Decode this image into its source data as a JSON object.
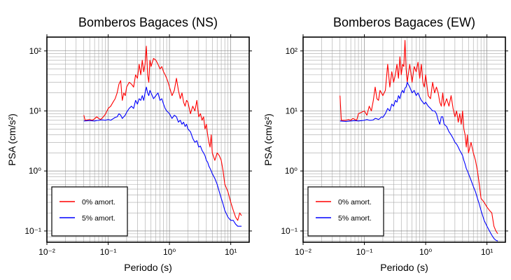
{
  "chart_data": [
    {
      "type": "line",
      "title": "Bomberos Bagaces (NS)",
      "xlabel": "Periodo (s)",
      "ylabel": "PSA (cm/s²)",
      "xscale": "log",
      "yscale": "log",
      "xlim": [
        0.01,
        20
      ],
      "ylim": [
        0.065,
        170
      ],
      "grid": true,
      "legend_position": "bottom-left",
      "xticks": [
        {
          "value": 0.01,
          "label": "10⁻²"
        },
        {
          "value": 0.1,
          "label": "10⁻¹"
        },
        {
          "value": 1,
          "label": "10⁰"
        },
        {
          "value": 10,
          "label": "10¹"
        }
      ],
      "yticks": [
        {
          "value": 0.1,
          "label": "10⁻¹"
        },
        {
          "value": 1,
          "label": "10⁰"
        },
        {
          "value": 10,
          "label": "10¹"
        },
        {
          "value": 100,
          "label": "10²"
        }
      ],
      "series": [
        {
          "name": "0% amort.",
          "color": "#ff0000",
          "x": [
            0.04,
            0.042,
            0.05,
            0.055,
            0.06,
            0.065,
            0.07,
            0.075,
            0.08,
            0.09,
            0.1,
            0.11,
            0.12,
            0.13,
            0.14,
            0.15,
            0.16,
            0.17,
            0.18,
            0.19,
            0.2,
            0.22,
            0.24,
            0.26,
            0.28,
            0.3,
            0.32,
            0.34,
            0.36,
            0.38,
            0.4,
            0.42,
            0.44,
            0.46,
            0.48,
            0.5,
            0.55,
            0.6,
            0.65,
            0.7,
            0.75,
            0.8,
            0.85,
            0.9,
            0.95,
            1.0,
            1.1,
            1.2,
            1.3,
            1.4,
            1.5,
            1.6,
            1.7,
            1.8,
            1.9,
            2.0,
            2.2,
            2.4,
            2.6,
            2.8,
            3.0,
            3.2,
            3.4,
            3.6,
            3.8,
            4.0,
            4.2,
            4.4,
            4.6,
            4.8,
            5.0,
            5.5,
            6.0,
            6.5,
            7.0,
            7.5,
            8.0,
            9.0,
            10.0,
            11.0,
            12.0,
            13.0,
            14.0,
            15.0
          ],
          "y": [
            8.5,
            7.0,
            7.2,
            7.0,
            7.4,
            8.0,
            7.5,
            7.2,
            7.6,
            8.8,
            11.0,
            12.0,
            14.0,
            16.0,
            20.0,
            28.0,
            32.0,
            15.0,
            20.0,
            18.0,
            25.0,
            30.0,
            28.0,
            25.0,
            40.0,
            35.0,
            60.0,
            40.0,
            70.0,
            45.0,
            60.0,
            120.0,
            40.0,
            30.0,
            70.0,
            55.0,
            75.0,
            70.0,
            60.0,
            50.0,
            55.0,
            45.0,
            40.0,
            35.0,
            30.0,
            25.0,
            18.0,
            22.0,
            35.0,
            22.0,
            16.0,
            20.0,
            14.0,
            12.0,
            15.0,
            14.0,
            9.0,
            12.0,
            10.0,
            15.0,
            8.0,
            9.0,
            7.0,
            8.0,
            5.0,
            6.0,
            4.0,
            3.0,
            2.5,
            4.0,
            2.0,
            1.5,
            2.0,
            1.8,
            1.5,
            1.0,
            0.6,
            0.45,
            0.3,
            0.22,
            0.17,
            0.15,
            0.2,
            0.18
          ]
        },
        {
          "name": "5% amort.",
          "color": "#0000ff",
          "x": [
            0.04,
            0.05,
            0.06,
            0.07,
            0.08,
            0.09,
            0.1,
            0.11,
            0.12,
            0.13,
            0.14,
            0.15,
            0.16,
            0.17,
            0.18,
            0.19,
            0.2,
            0.22,
            0.24,
            0.26,
            0.28,
            0.3,
            0.32,
            0.34,
            0.36,
            0.38,
            0.4,
            0.42,
            0.44,
            0.46,
            0.48,
            0.5,
            0.55,
            0.6,
            0.65,
            0.7,
            0.75,
            0.8,
            0.85,
            0.9,
            0.95,
            1.0,
            1.1,
            1.2,
            1.3,
            1.4,
            1.5,
            1.6,
            1.7,
            1.8,
            1.9,
            2.0,
            2.2,
            2.4,
            2.6,
            2.8,
            3.0,
            3.2,
            3.4,
            3.6,
            3.8,
            4.0,
            4.2,
            4.4,
            4.6,
            4.8,
            5.0,
            5.5,
            6.0,
            6.5,
            7.0,
            7.5,
            8.0,
            9.0,
            10.0,
            11.0,
            12.0,
            13.0,
            14.0,
            15.0
          ],
          "y": [
            6.8,
            6.9,
            6.8,
            7.0,
            7.1,
            7.0,
            7.2,
            7.0,
            7.4,
            7.8,
            8.0,
            9.0,
            8.5,
            7.5,
            8.0,
            8.5,
            9.5,
            11.0,
            12.0,
            11.0,
            15.0,
            13.0,
            16.0,
            15.0,
            18.0,
            15.0,
            20.0,
            25.0,
            20.0,
            18.0,
            22.0,
            20.0,
            16.0,
            18.0,
            20.0,
            15.0,
            16.0,
            13.0,
            11.0,
            10.0,
            9.5,
            9.0,
            7.5,
            8.5,
            8.0,
            6.5,
            7.0,
            6.0,
            6.5,
            5.5,
            6.0,
            5.0,
            4.5,
            3.5,
            3.0,
            3.2,
            2.5,
            2.6,
            2.2,
            2.0,
            1.8,
            1.5,
            1.4,
            1.2,
            1.1,
            1.0,
            0.9,
            0.75,
            0.6,
            0.45,
            0.35,
            0.28,
            0.22,
            0.17,
            0.15,
            0.15,
            0.13,
            0.12,
            0.12,
            0.12
          ]
        }
      ]
    },
    {
      "type": "line",
      "title": "Bomberos Bagaces (EW)",
      "xlabel": "Periodo (s)",
      "ylabel": "PSA (cm/s²)",
      "xscale": "log",
      "yscale": "log",
      "xlim": [
        0.01,
        20
      ],
      "ylim": [
        0.065,
        170
      ],
      "grid": true,
      "legend_position": "bottom-left",
      "xticks": [
        {
          "value": 0.01,
          "label": "10⁻²"
        },
        {
          "value": 0.1,
          "label": "10⁻¹"
        },
        {
          "value": 1,
          "label": "10⁰"
        },
        {
          "value": 10,
          "label": "10¹"
        }
      ],
      "yticks": [
        {
          "value": 0.1,
          "label": "10⁻¹"
        },
        {
          "value": 1,
          "label": "10⁰"
        },
        {
          "value": 10,
          "label": "10¹"
        },
        {
          "value": 100,
          "label": "10²"
        }
      ],
      "series": [
        {
          "name": "0% amort.",
          "color": "#ff0000",
          "x": [
            0.04,
            0.042,
            0.05,
            0.055,
            0.06,
            0.065,
            0.07,
            0.075,
            0.08,
            0.09,
            0.1,
            0.11,
            0.12,
            0.13,
            0.14,
            0.15,
            0.16,
            0.17,
            0.18,
            0.19,
            0.2,
            0.22,
            0.24,
            0.26,
            0.28,
            0.3,
            0.32,
            0.34,
            0.36,
            0.38,
            0.4,
            0.42,
            0.44,
            0.46,
            0.48,
            0.5,
            0.55,
            0.6,
            0.65,
            0.7,
            0.75,
            0.8,
            0.85,
            0.9,
            0.95,
            1.0,
            1.1,
            1.2,
            1.3,
            1.4,
            1.5,
            1.6,
            1.7,
            1.8,
            1.9,
            2.0,
            2.2,
            2.4,
            2.6,
            2.8,
            3.0,
            3.2,
            3.4,
            3.6,
            3.8,
            4.0,
            4.2,
            4.4,
            4.6,
            4.8,
            5.0,
            5.5,
            6.0,
            6.5,
            7.0,
            7.5,
            8.0,
            9.0,
            10.0,
            11.0,
            12.0,
            13.0,
            14.0,
            15.0
          ],
          "y": [
            18.0,
            7.0,
            7.0,
            7.2,
            7.0,
            7.5,
            7.2,
            7.0,
            9.0,
            9.5,
            10.0,
            8.5,
            12.0,
            10.0,
            15.0,
            25.0,
            16.0,
            15.0,
            22.0,
            20.0,
            18.0,
            22.0,
            60.0,
            25.0,
            45.0,
            30.0,
            40.0,
            60.0,
            35.0,
            80.0,
            40.0,
            60.0,
            55.0,
            150.0,
            50.0,
            30.0,
            60.0,
            30.0,
            55.0,
            45.0,
            65.0,
            35.0,
            60.0,
            30.0,
            25.0,
            40.0,
            18.0,
            16.0,
            30.0,
            20.0,
            25.0,
            20.0,
            14.0,
            12.0,
            20.0,
            12.0,
            16.0,
            12.0,
            18.0,
            11.0,
            8.0,
            10.0,
            6.5,
            9.0,
            6.0,
            10.0,
            5.0,
            4.0,
            2.5,
            4.0,
            2.0,
            3.0,
            2.0,
            1.5,
            1.0,
            0.6,
            0.35,
            0.3,
            0.25,
            0.22,
            0.2,
            0.12,
            0.1,
            0.09
          ]
        },
        {
          "name": "5% amort.",
          "color": "#0000ff",
          "x": [
            0.04,
            0.05,
            0.06,
            0.07,
            0.08,
            0.09,
            0.1,
            0.11,
            0.12,
            0.13,
            0.14,
            0.15,
            0.16,
            0.17,
            0.18,
            0.19,
            0.2,
            0.22,
            0.24,
            0.26,
            0.28,
            0.3,
            0.32,
            0.34,
            0.36,
            0.38,
            0.4,
            0.42,
            0.44,
            0.46,
            0.48,
            0.5,
            0.55,
            0.6,
            0.65,
            0.7,
            0.75,
            0.8,
            0.85,
            0.9,
            0.95,
            1.0,
            1.1,
            1.2,
            1.3,
            1.4,
            1.5,
            1.6,
            1.7,
            1.8,
            1.9,
            2.0,
            2.2,
            2.4,
            2.6,
            2.8,
            3.0,
            3.2,
            3.4,
            3.6,
            3.8,
            4.0,
            4.2,
            4.4,
            4.6,
            4.8,
            5.0,
            5.5,
            6.0,
            6.5,
            7.0,
            7.5,
            8.0,
            9.0,
            10.0,
            11.0,
            12.0,
            13.0,
            14.0,
            15.0
          ],
          "y": [
            6.8,
            6.7,
            6.8,
            6.9,
            6.8,
            6.9,
            7.0,
            7.2,
            7.0,
            7.0,
            7.1,
            7.5,
            7.4,
            7.2,
            7.5,
            8.0,
            7.8,
            9.0,
            11.0,
            10.0,
            13.0,
            12.0,
            15.0,
            14.0,
            18.0,
            16.0,
            20.0,
            22.0,
            20.0,
            24.0,
            25.0,
            30.0,
            25.0,
            20.0,
            22.0,
            18.0,
            20.0,
            17.0,
            15.0,
            14.0,
            13.0,
            14.0,
            12.0,
            11.0,
            10.0,
            10.0,
            9.0,
            7.0,
            6.0,
            8.0,
            8.0,
            6.0,
            5.5,
            4.5,
            4.0,
            3.5,
            3.0,
            2.8,
            2.5,
            2.2,
            2.0,
            1.8,
            1.5,
            1.3,
            1.1,
            1.0,
            0.9,
            0.7,
            0.55,
            0.45,
            0.35,
            0.28,
            0.22,
            0.15,
            0.12,
            0.1,
            0.085,
            0.075,
            0.07,
            0.068
          ]
        }
      ]
    }
  ]
}
